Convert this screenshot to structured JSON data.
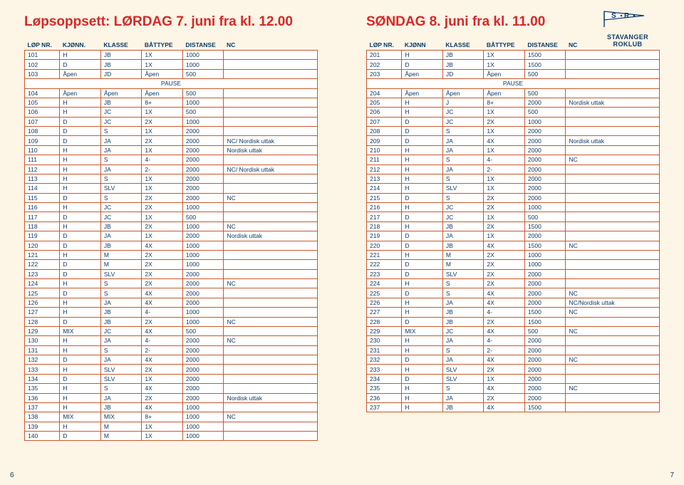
{
  "left": {
    "title": "Løpsoppsett: LØRDAG 7. juni fra kl. 12.00",
    "headers": [
      "LØP NR.",
      "KJØNN.",
      "KLASSE",
      "BÅTTYPE",
      "DISTANSE",
      "NC"
    ],
    "rows": [
      [
        "101",
        "H",
        "JB",
        "1X",
        "1000",
        ""
      ],
      [
        "102",
        "D",
        "JB",
        "1X",
        "1000",
        ""
      ],
      [
        "103",
        "Åpen",
        "JD",
        "Åpen",
        "500",
        ""
      ],
      [
        "PAUSE"
      ],
      [
        "104",
        "Åpen",
        "Åpen",
        "Åpen",
        "500",
        ""
      ],
      [
        "105",
        "H",
        "JB",
        "8+",
        "1000",
        ""
      ],
      [
        "106",
        "H",
        "JC",
        "1X",
        "500",
        ""
      ],
      [
        "107",
        "D",
        "JC",
        "2X",
        "1000",
        ""
      ],
      [
        "108",
        "D",
        "S",
        "1X",
        "2000",
        ""
      ],
      [
        "109",
        "D",
        "JA",
        "2X",
        "2000",
        "NC/ Nordisk uttak"
      ],
      [
        "110",
        "H",
        "JA",
        "1X",
        "2000",
        "Nordisk uttak"
      ],
      [
        "111",
        "H",
        "S",
        "4-",
        "2000",
        ""
      ],
      [
        "112",
        "H",
        "JA",
        "2-",
        "2000",
        "NC/ Nordisk uttak"
      ],
      [
        "113",
        "H",
        "S",
        "1X",
        "2000",
        ""
      ],
      [
        "114",
        "H",
        "SLV",
        "1X",
        "2000",
        ""
      ],
      [
        "115",
        "D",
        "S",
        "2X",
        "2000",
        "NC"
      ],
      [
        "116",
        "H",
        "JC",
        "2X",
        "1000",
        ""
      ],
      [
        "117",
        "D",
        "JC",
        "1X",
        "500",
        ""
      ],
      [
        "118",
        "H",
        "JB",
        "2X",
        "1000",
        "NC"
      ],
      [
        "119",
        "D",
        "JA",
        "1X",
        "2000",
        "Nordisk uttak"
      ],
      [
        "120",
        "D",
        "JB",
        "4X",
        "1000",
        ""
      ],
      [
        "121",
        "H",
        "M",
        "2X",
        "1000",
        ""
      ],
      [
        "122",
        "D",
        "M",
        "2X",
        "1000",
        ""
      ],
      [
        "123",
        "D",
        "SLV",
        "2X",
        "2000",
        ""
      ],
      [
        "124",
        "H",
        "S",
        "2X",
        "2000",
        "NC"
      ],
      [
        "125",
        "D",
        "S",
        "4X",
        "2000",
        ""
      ],
      [
        "126",
        "H",
        "JA",
        "4X",
        "2000",
        ""
      ],
      [
        "127",
        "H",
        "JB",
        "4-",
        "1000",
        ""
      ],
      [
        "128",
        "D",
        "JB",
        "2X",
        "1000",
        "NC"
      ],
      [
        "129",
        "MIX",
        "JC",
        "4X",
        "500",
        ""
      ],
      [
        "130",
        "H",
        "JA",
        "4-",
        "2000",
        "NC"
      ],
      [
        "131",
        "H",
        "S",
        "2-",
        "2000",
        ""
      ],
      [
        "132",
        "D",
        "JA",
        "4X",
        "2000",
        ""
      ],
      [
        "133",
        "H",
        "SLV",
        "2X",
        "2000",
        ""
      ],
      [
        "134",
        "D",
        "SLV",
        "1X",
        "2000",
        ""
      ],
      [
        "135",
        "H",
        "S",
        "4X",
        "2000",
        ""
      ],
      [
        "136",
        "H",
        "JA",
        "2X",
        "2000",
        "Nordisk uttak"
      ],
      [
        "137",
        "H",
        "JB",
        "4X",
        "1000",
        ""
      ],
      [
        "138",
        "MIX",
        "MIX",
        "8+",
        "1000",
        "NC"
      ],
      [
        "139",
        "H",
        "M",
        "1X",
        "1000",
        ""
      ],
      [
        "140",
        "D",
        "M",
        "1X",
        "1000",
        ""
      ]
    ],
    "pagenum": "6"
  },
  "right": {
    "title": "SØNDAG 8. juni fra kl. 11.00",
    "headers": [
      "LØP NR.",
      "KJØNN",
      "KLASSE",
      "BÅTTYPE",
      "DISTANSE",
      "NC"
    ],
    "rows": [
      [
        "201",
        "H",
        "JB",
        "1X",
        "1500",
        ""
      ],
      [
        "202",
        "D",
        "JB",
        "1X",
        "1500",
        ""
      ],
      [
        "203",
        "Åpen",
        "JD",
        "Åpen",
        "500",
        ""
      ],
      [
        "PAUSE"
      ],
      [
        "204",
        "Åpen",
        "Åpen",
        "Åpen",
        "500",
        ""
      ],
      [
        "205",
        "H",
        "J",
        "8+",
        "2000",
        "Nordisk uttak"
      ],
      [
        "206",
        "H",
        "JC",
        "1X",
        "500",
        ""
      ],
      [
        "207",
        "D",
        "JC",
        "2X",
        "1000",
        ""
      ],
      [
        "208",
        "D",
        "S",
        "1X",
        "2000",
        ""
      ],
      [
        "209",
        "D",
        "JA",
        "4X",
        "2000",
        "Nordisk uttak"
      ],
      [
        "210",
        "H",
        "JA",
        "1X",
        "2000",
        ""
      ],
      [
        "211",
        "H",
        "S",
        "4-",
        "2000",
        "NC"
      ],
      [
        "212",
        "H",
        "JA",
        "2-",
        "2000",
        ""
      ],
      [
        "213",
        "H",
        "S",
        "1X",
        "2000",
        ""
      ],
      [
        "214",
        "H",
        "SLV",
        "1X",
        "2000",
        ""
      ],
      [
        "215",
        "D",
        "S",
        "2X",
        "2000",
        ""
      ],
      [
        "216",
        "H",
        "JC",
        "2X",
        "1000",
        ""
      ],
      [
        "217",
        "D",
        "JC",
        "1X",
        "500",
        ""
      ],
      [
        "218",
        "H",
        "JB",
        "2X",
        "1500",
        ""
      ],
      [
        "219",
        "D",
        "JA",
        "1X",
        "2000",
        ""
      ],
      [
        "220",
        "D",
        "JB",
        "4X",
        "1500",
        "NC"
      ],
      [
        "221",
        "H",
        "M",
        "2X",
        "1000",
        ""
      ],
      [
        "222",
        "D",
        "M",
        "2X",
        "1000",
        ""
      ],
      [
        "223",
        "D",
        "SLV",
        "2X",
        "2000",
        ""
      ],
      [
        "224",
        "H",
        "S",
        "2X",
        "2000",
        ""
      ],
      [
        "225",
        "D",
        "S",
        "4X",
        "2000",
        "NC"
      ],
      [
        "226",
        "H",
        "JA",
        "4X",
        "2000",
        "NC/Nordisk uttak"
      ],
      [
        "227",
        "H",
        "JB",
        "4-",
        "1500",
        "NC"
      ],
      [
        "228",
        "D",
        "JB",
        "2X",
        "1500",
        ""
      ],
      [
        "229",
        "MIX",
        "JC",
        "4X",
        "500",
        "NC"
      ],
      [
        "230",
        "H",
        "JA",
        "4-",
        "2000",
        ""
      ],
      [
        "231",
        "H",
        "S",
        "2-",
        "2000",
        ""
      ],
      [
        "232",
        "D",
        "JA",
        "4X",
        "2000",
        "NC"
      ],
      [
        "233",
        "H",
        "SLV",
        "2X",
        "2000",
        ""
      ],
      [
        "234",
        "D",
        "SLV",
        "1X",
        "2000",
        ""
      ],
      [
        "235",
        "H",
        "S",
        "4X",
        "2000",
        "NC"
      ],
      [
        "236",
        "H",
        "JA",
        "2X",
        "2000",
        ""
      ],
      [
        "237",
        "H",
        "JB",
        "4X",
        "1500",
        ""
      ]
    ],
    "pagenum": "7",
    "club_name": "STAVANGER ROKLUB"
  }
}
